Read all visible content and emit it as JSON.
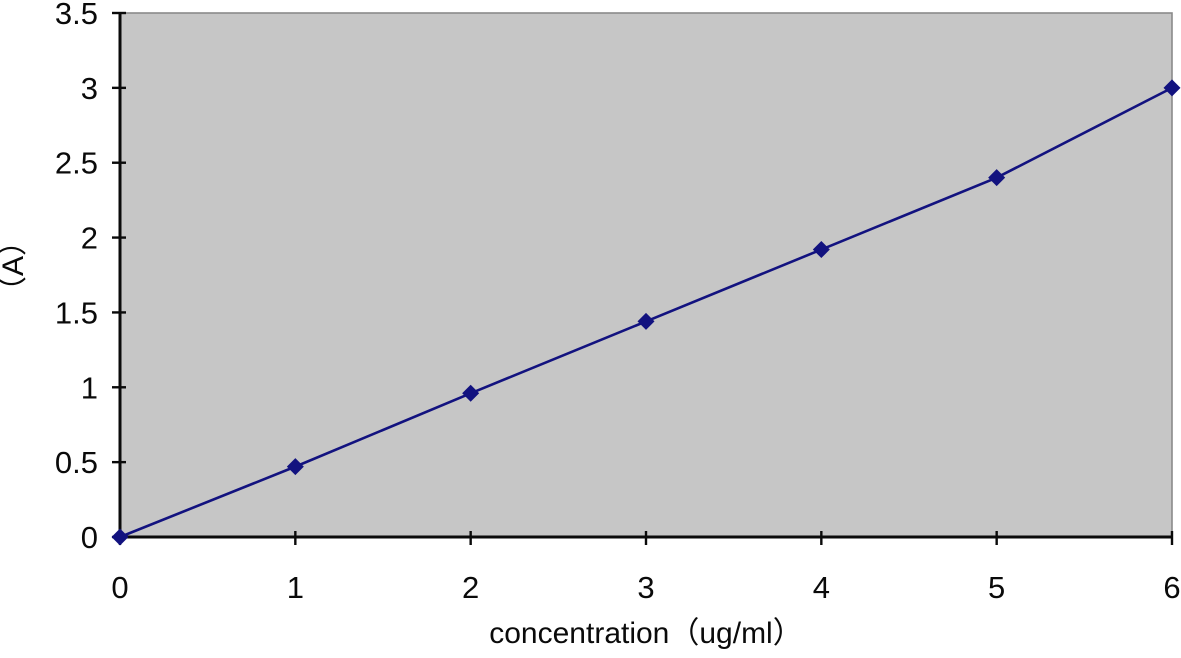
{
  "chart_data": {
    "type": "line",
    "title": "",
    "xlabel": "concentration（ug/ml）",
    "ylabel": "（A）",
    "x": [
      0,
      1,
      2,
      3,
      4,
      5,
      6
    ],
    "series": [
      {
        "values": [
          0,
          0.47,
          0.96,
          1.44,
          1.92,
          2.4,
          3.0
        ]
      }
    ],
    "xlim": [
      0,
      6
    ],
    "ylim": [
      0,
      3.5
    ],
    "xtick_values": [
      0,
      1,
      2,
      3,
      4,
      5,
      6
    ],
    "xtick_labels": [
      "0",
      "1",
      "2",
      "3",
      "4",
      "5",
      "6"
    ],
    "ytick_values": [
      0,
      0.5,
      1,
      1.5,
      2,
      2.5,
      3,
      3.5
    ],
    "ytick_labels": [
      "0",
      "0.5",
      "1",
      "1.5",
      "2",
      "2.5",
      "3",
      "3.5"
    ],
    "grid": false,
    "legend": "none",
    "marker": "diamond",
    "colors": {
      "line": "#12127f",
      "marker": "#12127f",
      "plot_bg": "#c6c6c6",
      "plot_border": "#8a8a8a",
      "axis": "#0a0a0a",
      "tick": "#0a0a0a",
      "text": "#0a0a0a",
      "page_bg": "#ffffff"
    }
  }
}
